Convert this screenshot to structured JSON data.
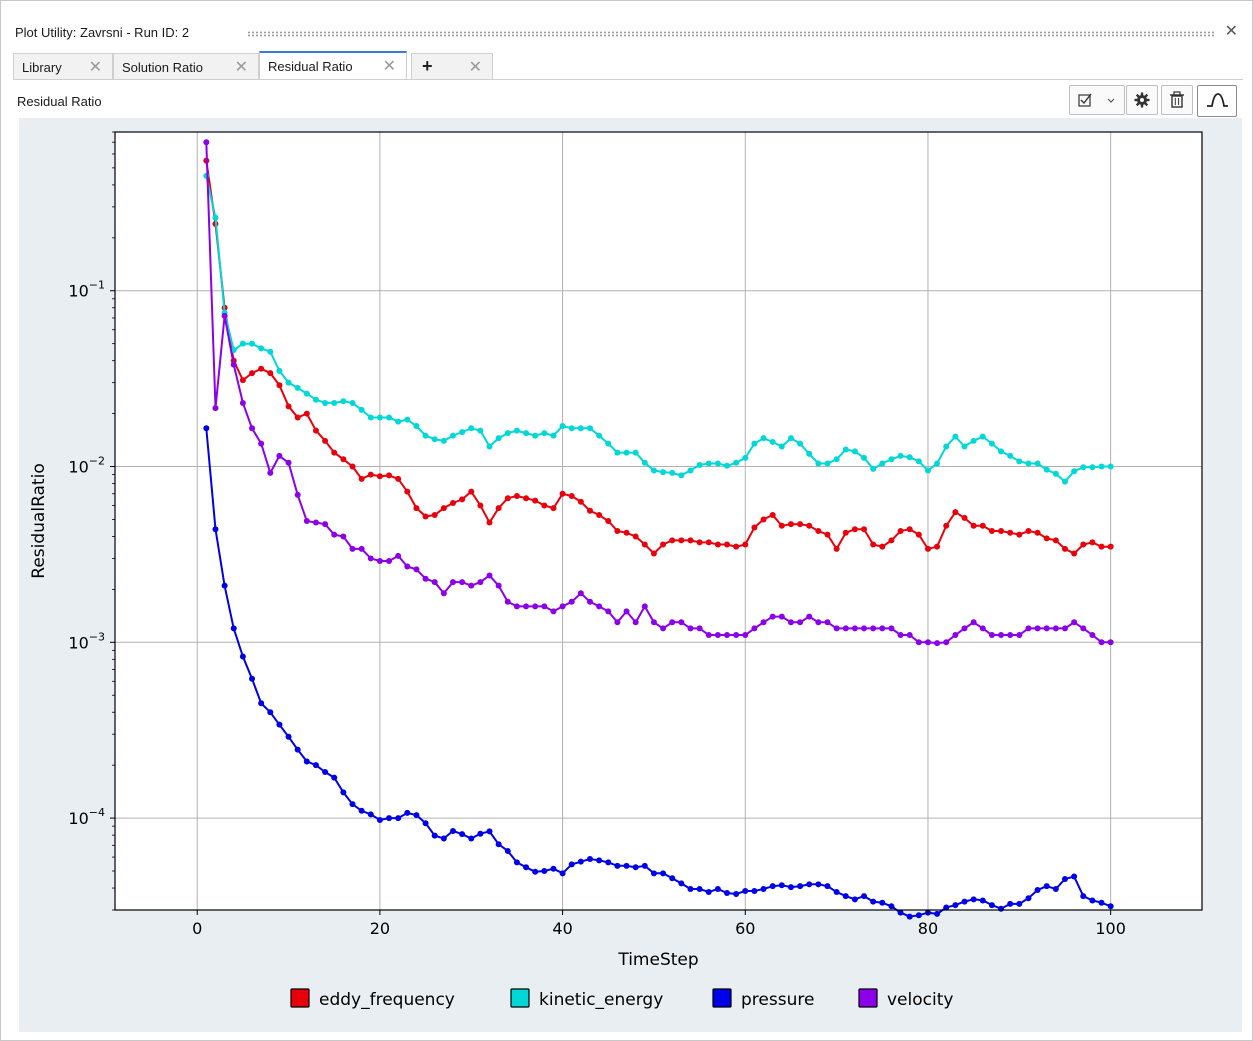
{
  "window": {
    "title": "Plot Utility: Zavrsni - Run ID: 2"
  },
  "tabs": [
    {
      "label": "Library"
    },
    {
      "label": "Solution Ratio"
    },
    {
      "label": "Residual Ratio"
    }
  ],
  "section": {
    "label": "Residual Ratio"
  },
  "icons": {
    "close": "close-icon",
    "add_tab": "plus-icon",
    "select": "checkbox-icon",
    "settings": "gear-icon",
    "delete": "trash-icon",
    "plot_mode": "curve-icon"
  },
  "chart_data": {
    "type": "line",
    "xlabel": "TimeStep",
    "ylabel": "ResidualRatio",
    "yscale": "log",
    "xlim": [
      -9,
      110
    ],
    "ylim": [
      3e-05,
      0.8
    ],
    "xticks": [
      0,
      20,
      40,
      60,
      80,
      100
    ],
    "yticks": [
      {
        "value": 0.1,
        "base": "10",
        "exp": "−1"
      },
      {
        "value": 0.01,
        "base": "10",
        "exp": "−2"
      },
      {
        "value": 0.001,
        "base": "10",
        "exp": "−3"
      },
      {
        "value": 0.0001,
        "base": "10",
        "exp": "−4"
      }
    ],
    "grid": true,
    "legend_position": "bottom",
    "x": [
      1,
      2,
      3,
      4,
      5,
      6,
      7,
      8,
      9,
      10,
      11,
      12,
      13,
      14,
      15,
      16,
      17,
      18,
      19,
      20,
      21,
      22,
      23,
      24,
      25,
      26,
      27,
      28,
      29,
      30,
      31,
      32,
      33,
      34,
      35,
      36,
      37,
      38,
      39,
      40,
      41,
      42,
      43,
      44,
      45,
      46,
      47,
      48,
      49,
      50,
      51,
      52,
      53,
      54,
      55,
      56,
      57,
      58,
      59,
      60,
      61,
      62,
      63,
      64,
      65,
      66,
      67,
      68,
      69,
      70,
      71,
      72,
      73,
      74,
      75,
      76,
      77,
      78,
      79,
      80,
      81,
      82,
      83,
      84,
      85,
      86,
      87,
      88,
      89,
      90,
      91,
      92,
      93,
      94,
      95,
      96,
      97,
      98,
      99,
      100
    ],
    "series": [
      {
        "name": "eddy_frequency",
        "color": "#e8000b",
        "values": [
          0.55,
          0.24,
          0.08,
          0.04,
          0.031,
          0.034,
          0.036,
          0.034,
          0.029,
          0.022,
          0.019,
          0.02,
          0.016,
          0.014,
          0.012,
          0.011,
          0.01,
          0.0085,
          0.009,
          0.0088,
          0.0089,
          0.0085,
          0.0072,
          0.0058,
          0.0052,
          0.0053,
          0.0058,
          0.0062,
          0.0065,
          0.0072,
          0.006,
          0.0048,
          0.0058,
          0.0066,
          0.0068,
          0.0066,
          0.0064,
          0.006,
          0.0058,
          0.007,
          0.0068,
          0.0063,
          0.0056,
          0.0053,
          0.0049,
          0.0043,
          0.0042,
          0.004,
          0.0036,
          0.0032,
          0.0036,
          0.0038,
          0.0038,
          0.0038,
          0.0037,
          0.0037,
          0.0036,
          0.0036,
          0.0035,
          0.0036,
          0.0045,
          0.005,
          0.0053,
          0.0046,
          0.0047,
          0.0047,
          0.0046,
          0.0043,
          0.0041,
          0.0034,
          0.0042,
          0.0044,
          0.0044,
          0.0036,
          0.0035,
          0.0038,
          0.0043,
          0.0044,
          0.0041,
          0.0034,
          0.0035,
          0.0046,
          0.0055,
          0.0051,
          0.0046,
          0.0046,
          0.0043,
          0.0043,
          0.0042,
          0.0041,
          0.0043,
          0.0042,
          0.0039,
          0.0038,
          0.0034,
          0.0032,
          0.0036,
          0.0037,
          0.0035,
          0.0035
        ]
      },
      {
        "name": "kinetic_energy",
        "color": "#00d7d7",
        "values": [
          0.45,
          0.26,
          0.075,
          0.046,
          0.05,
          0.05,
          0.047,
          0.045,
          0.035,
          0.03,
          0.028,
          0.026,
          0.024,
          0.023,
          0.023,
          0.0235,
          0.023,
          0.021,
          0.019,
          0.019,
          0.019,
          0.018,
          0.0185,
          0.017,
          0.015,
          0.0143,
          0.014,
          0.015,
          0.0157,
          0.0165,
          0.016,
          0.013,
          0.0145,
          0.0155,
          0.016,
          0.0155,
          0.015,
          0.0155,
          0.015,
          0.017,
          0.0165,
          0.0165,
          0.0165,
          0.015,
          0.0135,
          0.012,
          0.012,
          0.012,
          0.0105,
          0.0095,
          0.0093,
          0.0092,
          0.0089,
          0.0095,
          0.0102,
          0.0104,
          0.0104,
          0.0101,
          0.0105,
          0.0112,
          0.0135,
          0.0145,
          0.0138,
          0.013,
          0.0145,
          0.0135,
          0.0118,
          0.0104,
          0.0104,
          0.011,
          0.0125,
          0.0122,
          0.0112,
          0.0097,
          0.0104,
          0.011,
          0.0115,
          0.0113,
          0.0107,
          0.0095,
          0.0104,
          0.013,
          0.0148,
          0.013,
          0.014,
          0.0148,
          0.0135,
          0.0122,
          0.0115,
          0.0107,
          0.0104,
          0.0104,
          0.0096,
          0.0091,
          0.0082,
          0.0094,
          0.0099,
          0.0099,
          0.01,
          0.01
        ]
      },
      {
        "name": "pressure",
        "color": "#0000e8",
        "values": [
          0.0165,
          0.0044,
          0.0021,
          0.0012,
          0.00083,
          0.00062,
          0.00045,
          0.0004,
          0.00034,
          0.00029,
          0.000245,
          0.00021,
          0.0002,
          0.000183,
          0.00017,
          0.00014,
          0.00012,
          0.00011,
          0.000105,
          9.75e-05,
          0.0001,
          0.0001,
          0.000107,
          0.000104,
          9.35e-05,
          7.95e-05,
          7.65e-05,
          8.45e-05,
          8.1e-05,
          7.65e-05,
          8.15e-05,
          8.4e-05,
          7.1e-05,
          6.5e-05,
          5.6e-05,
          5.25e-05,
          4.95e-05,
          5e-05,
          5.15e-05,
          4.85e-05,
          5.45e-05,
          5.65e-05,
          5.85e-05,
          5.75e-05,
          5.6e-05,
          5.35e-05,
          5.35e-05,
          5.25e-05,
          5.35e-05,
          4.85e-05,
          4.85e-05,
          4.55e-05,
          4.25e-05,
          3.95e-05,
          3.95e-05,
          3.8e-05,
          3.95e-05,
          3.75e-05,
          3.7e-05,
          3.85e-05,
          3.85e-05,
          3.95e-05,
          4.1e-05,
          4.15e-05,
          4.05e-05,
          4.1e-05,
          4.2e-05,
          4.2e-05,
          4.1e-05,
          3.8e-05,
          3.6e-05,
          3.45e-05,
          3.6e-05,
          3.35e-05,
          3.3e-05,
          3.15e-05,
          2.9e-05,
          2.75e-05,
          2.8e-05,
          2.9e-05,
          2.85e-05,
          3.1e-05,
          3.2e-05,
          3.35e-05,
          3.45e-05,
          3.4e-05,
          3.2e-05,
          3.05e-05,
          3.25e-05,
          3.25e-05,
          3.5e-05,
          3.9e-05,
          4.1e-05,
          3.95e-05,
          4.5e-05,
          4.65e-05,
          3.6e-05,
          3.4e-05,
          3.3e-05,
          3.15e-05
        ]
      },
      {
        "name": "velocity",
        "color": "#8b00e8",
        "values": [
          0.7,
          0.0215,
          0.072,
          0.038,
          0.023,
          0.0165,
          0.0135,
          0.0092,
          0.0115,
          0.0105,
          0.0069,
          0.0049,
          0.0048,
          0.0047,
          0.0041,
          0.004,
          0.0034,
          0.0034,
          0.003,
          0.0029,
          0.0029,
          0.0031,
          0.0027,
          0.0026,
          0.0023,
          0.0022,
          0.0019,
          0.0022,
          0.0022,
          0.0021,
          0.0022,
          0.0024,
          0.0021,
          0.0017,
          0.0016,
          0.0016,
          0.0016,
          0.0016,
          0.0015,
          0.0016,
          0.0017,
          0.0019,
          0.0017,
          0.0016,
          0.0015,
          0.0013,
          0.0015,
          0.0013,
          0.0016,
          0.0013,
          0.0012,
          0.0013,
          0.0013,
          0.0012,
          0.0012,
          0.0011,
          0.0011,
          0.0011,
          0.0011,
          0.0011,
          0.0012,
          0.0013,
          0.0014,
          0.0014,
          0.0013,
          0.0013,
          0.0014,
          0.0013,
          0.0013,
          0.0012,
          0.0012,
          0.0012,
          0.0012,
          0.0012,
          0.0012,
          0.0012,
          0.0011,
          0.0011,
          0.001,
          0.001,
          0.00099,
          0.001,
          0.0011,
          0.0012,
          0.0013,
          0.0012,
          0.0011,
          0.0011,
          0.0011,
          0.0011,
          0.0012,
          0.0012,
          0.0012,
          0.0012,
          0.0012,
          0.0013,
          0.0012,
          0.0011,
          0.001,
          0.001
        ]
      }
    ]
  }
}
